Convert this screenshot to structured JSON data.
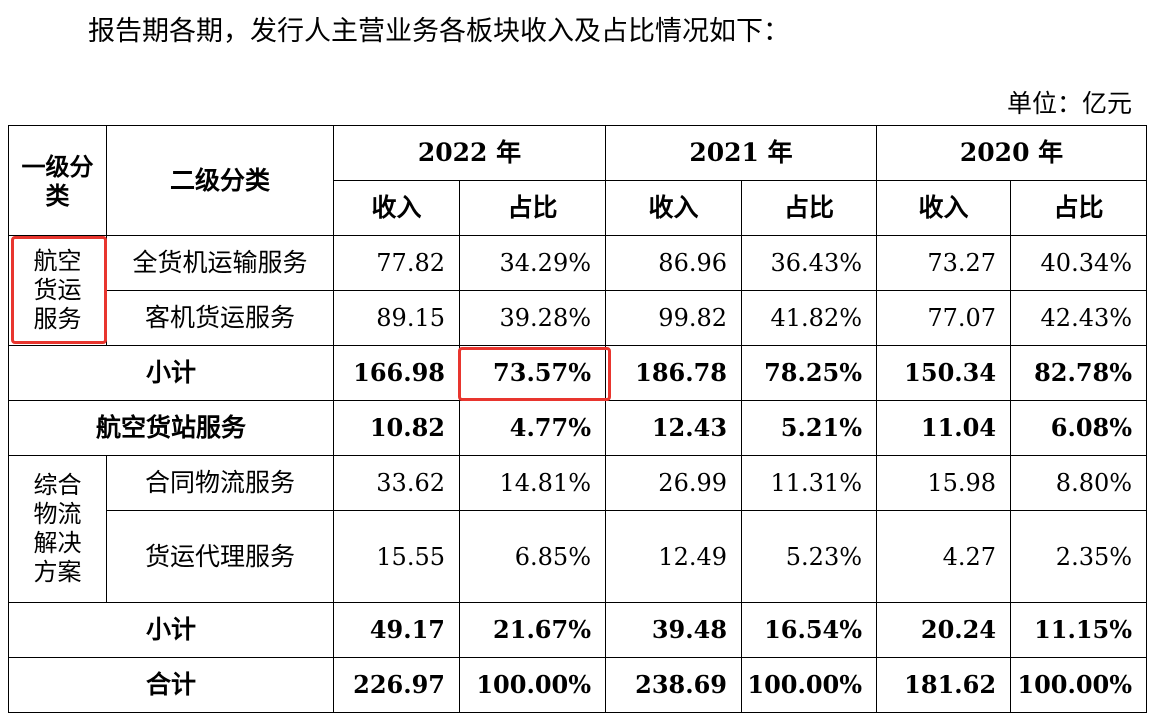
{
  "intro": "报告期各期，发行人主营业务各板块收入及占比情况如下：",
  "unit": "单位：亿元",
  "header": {
    "cat1": "一级分类",
    "cat2": "二级分类",
    "years": [
      "2022 年",
      "2021 年",
      "2020 年"
    ],
    "revenue": "收入",
    "share": "占比"
  },
  "sections": {
    "aviation": {
      "name": "航空货运服务",
      "rows": [
        {
          "name": "全货机运输服务",
          "values": [
            "77.82",
            "34.29%",
            "86.96",
            "36.43%",
            "73.27",
            "40.34%"
          ]
        },
        {
          "name": "客机货运服务",
          "values": [
            "89.15",
            "39.28%",
            "99.82",
            "41.82%",
            "77.07",
            "42.43%"
          ]
        }
      ],
      "subtotal": {
        "name": "小计",
        "values": [
          "166.98",
          "73.57%",
          "186.78",
          "78.25%",
          "150.34",
          "82.78%"
        ]
      }
    },
    "cargo_station": {
      "name": "航空货站服务",
      "values": [
        "10.82",
        "4.77%",
        "12.43",
        "5.21%",
        "11.04",
        "6.08%"
      ]
    },
    "logistics": {
      "name": "综合物流解决方案",
      "rows": [
        {
          "name": "合同物流服务",
          "values": [
            "33.62",
            "14.81%",
            "26.99",
            "11.31%",
            "15.98",
            "8.80%"
          ]
        },
        {
          "name": "货运代理服务",
          "values": [
            "15.55",
            "6.85%",
            "12.49",
            "5.23%",
            "4.27",
            "2.35%"
          ]
        }
      ],
      "subtotal": {
        "name": "小计",
        "values": [
          "49.17",
          "21.67%",
          "39.48",
          "16.54%",
          "20.24",
          "11.15%"
        ]
      }
    },
    "total": {
      "name": "合计",
      "values": [
        "226.97",
        "100.00%",
        "238.69",
        "100.00%",
        "181.62",
        "100.00%"
      ]
    }
  },
  "highlight_color": "#e8352e"
}
